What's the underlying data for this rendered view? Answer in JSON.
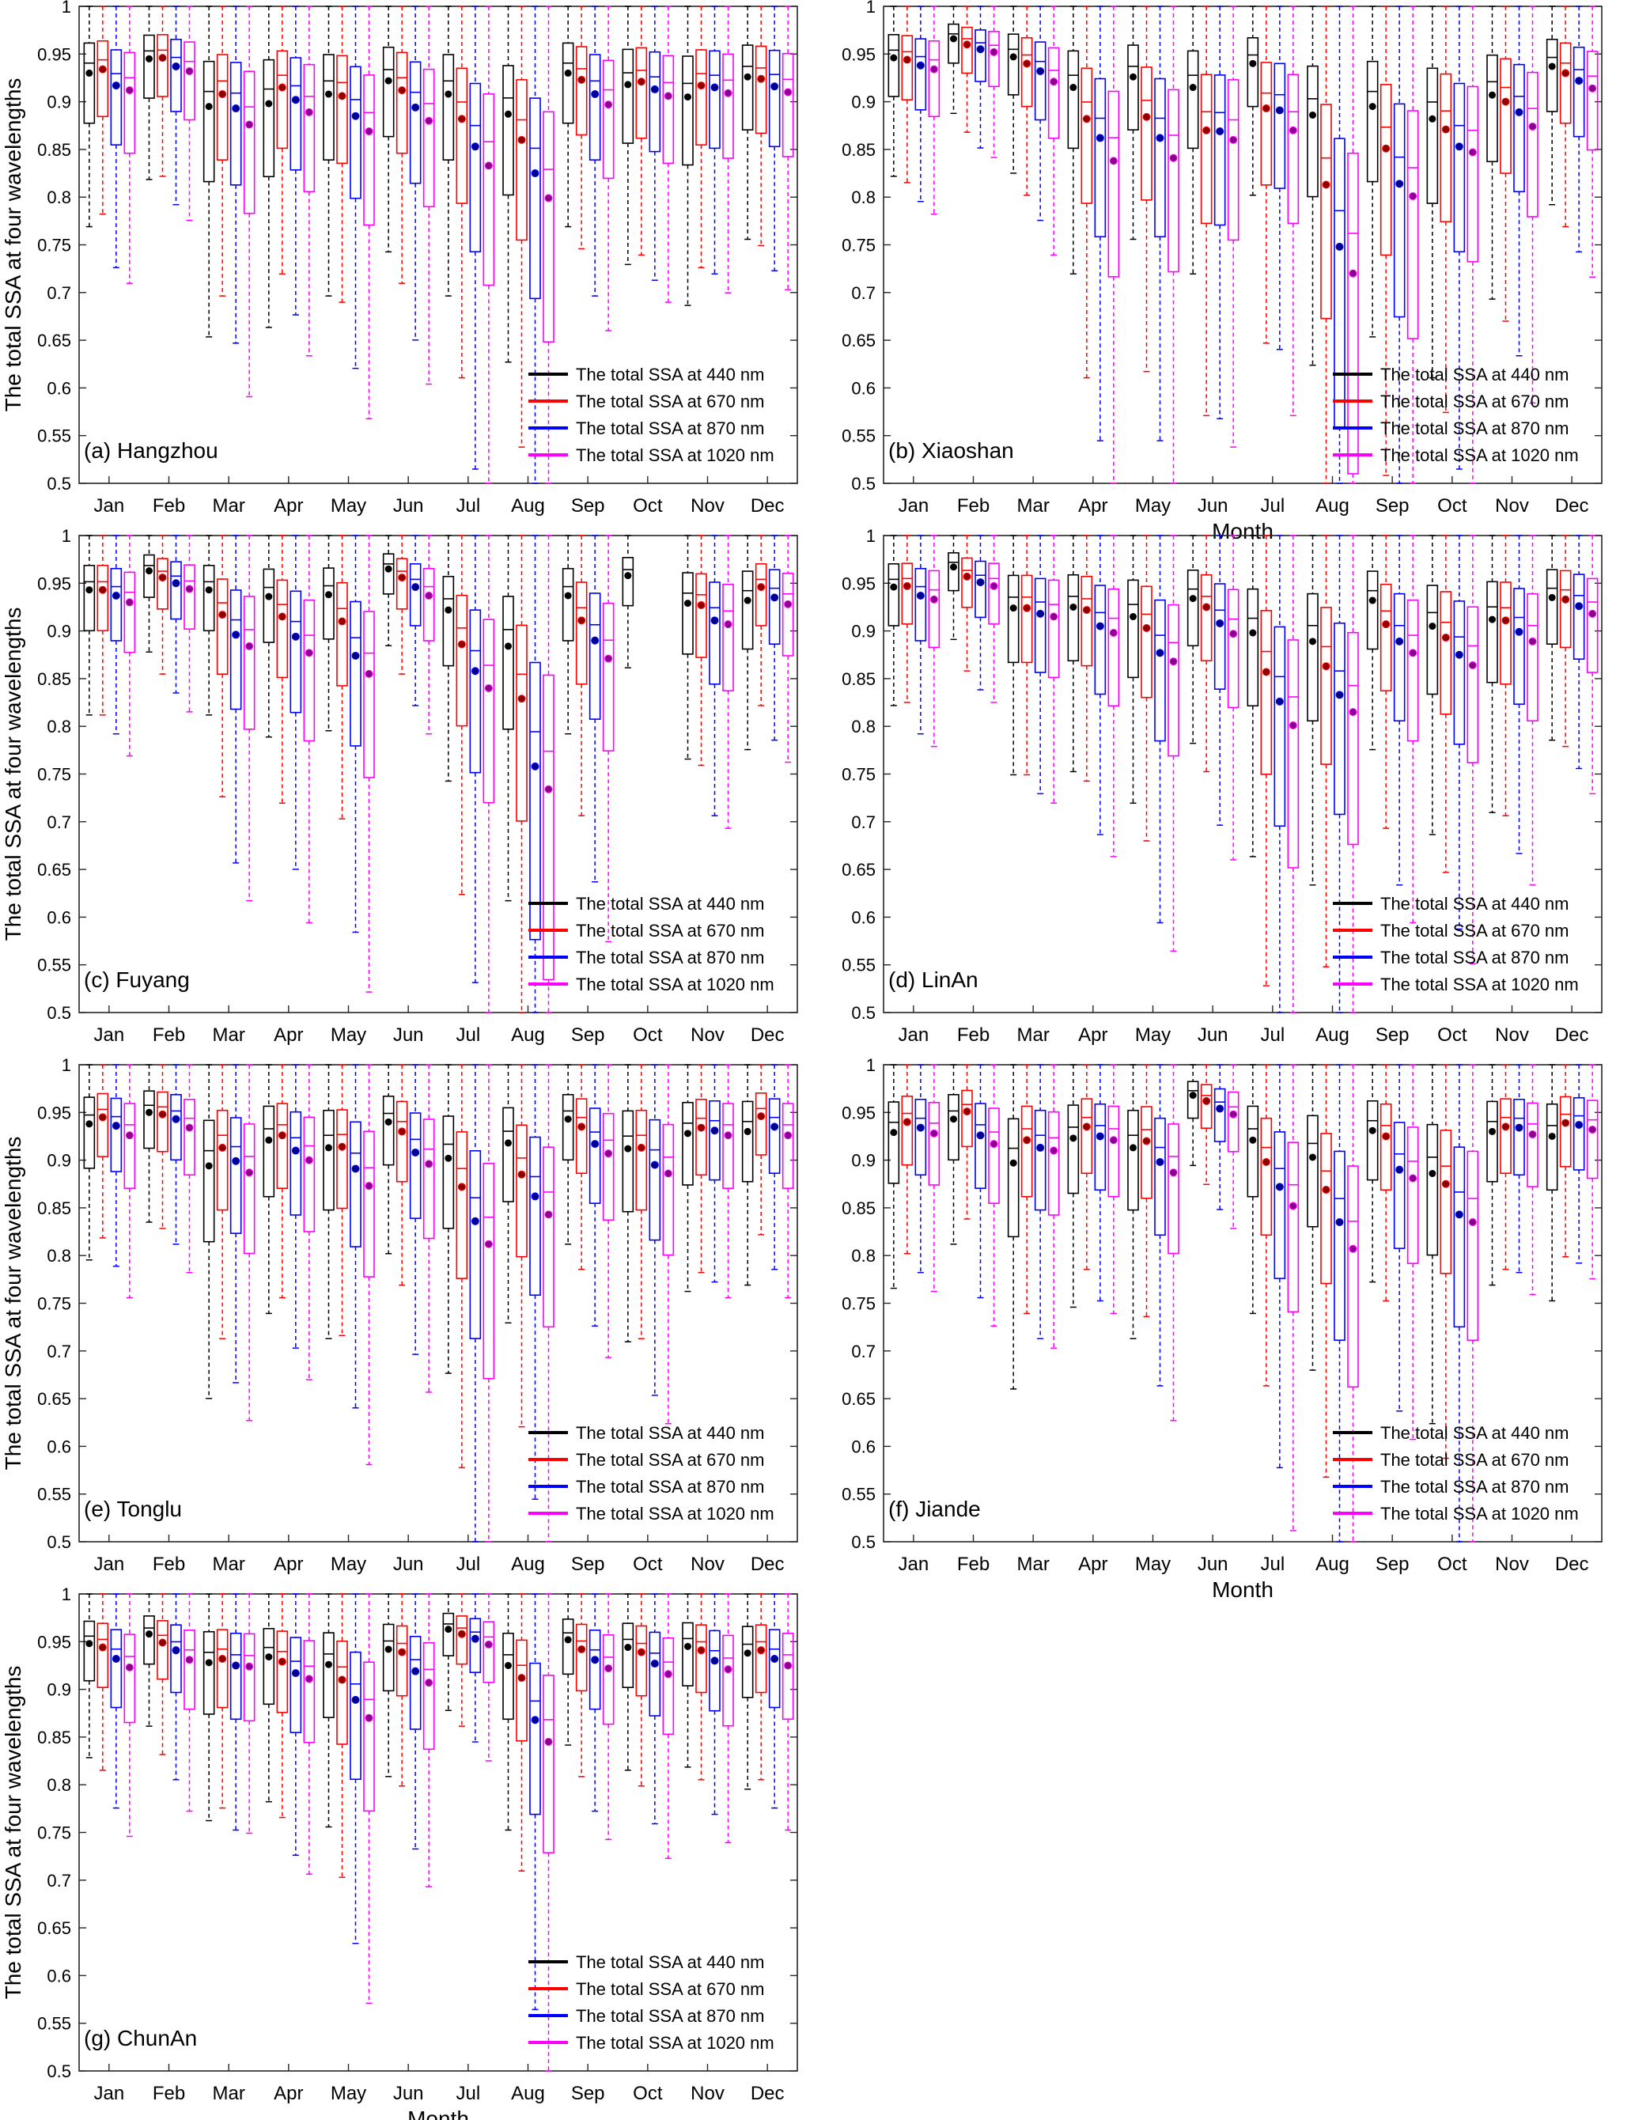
{
  "figure": {
    "ylabel": "The total SSA at four wavelengths",
    "xlabel": "Month"
  },
  "chart_data": [
    {
      "type": "box",
      "panel_label": "(a) Hangzhou",
      "ylim": [
        0.5,
        1.0
      ],
      "yticks": [
        "0.5",
        "0.55",
        "0.6",
        "0.65",
        "0.7",
        "0.75",
        "0.8",
        "0.85",
        "0.9",
        "0.95",
        "1"
      ],
      "categories": [
        "Jan",
        "Feb",
        "Mar",
        "Apr",
        "May",
        "Jun",
        "Jul",
        "Aug",
        "Sep",
        "Oct",
        "Nov",
        "Dec"
      ],
      "ylabel": "The total SSA at four wavelengths",
      "xlabel": "",
      "legend_position": "bottom-right",
      "series": [
        {
          "name": "The total SSA at 440  nm",
          "color": "#000000",
          "mean": [
            0.93,
            0.945,
            0.895,
            0.898,
            0.908,
            0.922,
            0.908,
            0.887,
            0.93,
            0.918,
            0.905,
            0.926
          ]
        },
        {
          "name": "The total SSA at 670  nm",
          "color": "#ff0000",
          "mean": [
            0.934,
            0.946,
            0.908,
            0.915,
            0.906,
            0.912,
            0.882,
            0.86,
            0.923,
            0.921,
            0.917,
            0.924
          ]
        },
        {
          "name": "The total SSA at 870  nm",
          "color": "#0000ff",
          "mean": [
            0.917,
            0.937,
            0.893,
            0.902,
            0.885,
            0.894,
            0.853,
            0.825,
            0.908,
            0.913,
            0.915,
            0.916
          ]
        },
        {
          "name": "The total SSA at 1020 nm",
          "color": "#ff00ff",
          "mean": [
            0.912,
            0.932,
            0.876,
            0.889,
            0.869,
            0.88,
            0.833,
            0.799,
            0.897,
            0.906,
            0.909,
            0.91
          ]
        }
      ]
    },
    {
      "type": "box",
      "panel_label": "(b) Xiaoshan",
      "ylim": [
        0.5,
        1.0
      ],
      "yticks": [
        "0.5",
        "0.55",
        "0.6",
        "0.65",
        "0.7",
        "0.75",
        "0.8",
        "0.85",
        "0.9",
        "0.95",
        "1"
      ],
      "categories": [
        "Jan",
        "Feb",
        "Mar",
        "Apr",
        "May",
        "Jun",
        "Jul",
        "Aug",
        "Sep",
        "Oct",
        "Nov",
        "Dec"
      ],
      "ylabel": "",
      "xlabel": "Month",
      "legend_position": "bottom-right",
      "series": [
        {
          "name": "The total SSA at 440  nm",
          "color": "#000000",
          "mean": [
            0.946,
            0.966,
            0.947,
            0.915,
            0.926,
            0.915,
            0.94,
            0.886,
            0.895,
            0.882,
            0.907,
            0.937
          ]
        },
        {
          "name": "The total SSA at 670  nm",
          "color": "#ff0000",
          "mean": [
            0.944,
            0.96,
            0.94,
            0.882,
            0.884,
            0.87,
            0.893,
            0.813,
            0.851,
            0.871,
            0.9,
            0.93
          ]
        },
        {
          "name": "The total SSA at 870  nm",
          "color": "#0000ff",
          "mean": [
            0.938,
            0.955,
            0.932,
            0.862,
            0.862,
            0.869,
            0.891,
            0.748,
            0.814,
            0.853,
            0.889,
            0.922
          ]
        },
        {
          "name": "The total SSA at 1020 nm",
          "color": "#ff00ff",
          "mean": [
            0.934,
            0.952,
            0.921,
            0.838,
            0.841,
            0.86,
            0.87,
            0.72,
            0.801,
            0.847,
            0.874,
            0.914
          ]
        }
      ]
    },
    {
      "type": "box",
      "panel_label": "(c) Fuyang",
      "ylim": [
        0.5,
        1.0
      ],
      "yticks": [
        "0.5",
        "0.55",
        "0.6",
        "0.65",
        "0.7",
        "0.75",
        "0.8",
        "0.85",
        "0.9",
        "0.95",
        "1"
      ],
      "categories": [
        "Jan",
        "Feb",
        "Mar",
        "Apr",
        "May",
        "Jun",
        "Jul",
        "Aug",
        "Sep",
        "Oct",
        "Nov",
        "Dec"
      ],
      "ylabel": "The total SSA at four wavelengths",
      "xlabel": "",
      "legend_position": "bottom-right",
      "series": [
        {
          "name": "The total SSA at 440  nm",
          "color": "#000000",
          "mean": [
            0.943,
            0.963,
            0.943,
            0.936,
            0.938,
            0.965,
            0.922,
            0.884,
            0.937,
            0.958,
            0.929,
            0.932
          ]
        },
        {
          "name": "The total SSA at 670  nm",
          "color": "#ff0000",
          "mean": [
            0.943,
            0.956,
            0.917,
            0.915,
            0.91,
            0.956,
            0.886,
            0.829,
            0.911,
            null,
            0.927,
            0.946
          ]
        },
        {
          "name": "The total SSA at 870  nm",
          "color": "#0000ff",
          "mean": [
            0.937,
            0.95,
            0.896,
            0.894,
            0.874,
            0.946,
            0.858,
            0.758,
            0.89,
            null,
            0.911,
            0.935
          ]
        },
        {
          "name": "The total SSA at 1020 nm",
          "color": "#ff00ff",
          "mean": [
            0.93,
            0.944,
            0.884,
            0.877,
            0.855,
            0.937,
            0.84,
            0.734,
            0.871,
            null,
            0.907,
            0.928
          ]
        }
      ]
    },
    {
      "type": "box",
      "panel_label": "(d) LinAn",
      "ylim": [
        0.5,
        1.0
      ],
      "yticks": [
        "0.5",
        "0.55",
        "0.6",
        "0.65",
        "0.7",
        "0.75",
        "0.8",
        "0.85",
        "0.9",
        "0.95",
        "1"
      ],
      "categories": [
        "Jan",
        "Feb",
        "Mar",
        "Apr",
        "May",
        "Jun",
        "Jul",
        "Aug",
        "Sep",
        "Oct",
        "Nov",
        "Dec"
      ],
      "ylabel": "",
      "xlabel": "",
      "legend_position": "bottom-right",
      "series": [
        {
          "name": "The total SSA at 440  nm",
          "color": "#000000",
          "mean": [
            0.946,
            0.967,
            0.924,
            0.925,
            0.915,
            0.934,
            0.898,
            0.889,
            0.932,
            0.905,
            0.912,
            0.935
          ]
        },
        {
          "name": "The total SSA at 670  nm",
          "color": "#ff0000",
          "mean": [
            0.947,
            0.957,
            0.924,
            0.922,
            0.903,
            0.925,
            0.857,
            0.863,
            0.907,
            0.893,
            0.911,
            0.933
          ]
        },
        {
          "name": "The total SSA at 870  nm",
          "color": "#0000ff",
          "mean": [
            0.937,
            0.951,
            0.918,
            0.905,
            0.877,
            0.908,
            0.826,
            0.833,
            0.889,
            0.875,
            0.899,
            0.926
          ]
        },
        {
          "name": "The total SSA at 1020 nm",
          "color": "#ff00ff",
          "mean": [
            0.933,
            0.947,
            0.915,
            0.898,
            0.868,
            0.897,
            0.801,
            0.815,
            0.877,
            0.864,
            0.889,
            0.918
          ]
        }
      ]
    },
    {
      "type": "box",
      "panel_label": "(e) Tonglu",
      "ylim": [
        0.5,
        1.0
      ],
      "yticks": [
        "0.5",
        "0.55",
        "0.6",
        "0.65",
        "0.7",
        "0.75",
        "0.8",
        "0.85",
        "0.9",
        "0.95",
        "1"
      ],
      "categories": [
        "Jan",
        "Feb",
        "Mar",
        "Apr",
        "May",
        "Jun",
        "Jul",
        "Aug",
        "Sep",
        "Oct",
        "Nov",
        "Dec"
      ],
      "ylabel": "The total SSA at four wavelengths",
      "xlabel": "",
      "legend_position": "bottom-right",
      "series": [
        {
          "name": "The total SSA at 440  nm",
          "color": "#000000",
          "mean": [
            0.938,
            0.95,
            0.894,
            0.921,
            0.913,
            0.94,
            0.902,
            0.918,
            0.943,
            0.912,
            0.928,
            0.93
          ]
        },
        {
          "name": "The total SSA at 670  nm",
          "color": "#ff0000",
          "mean": [
            0.945,
            0.948,
            0.913,
            0.926,
            0.914,
            0.93,
            0.872,
            0.885,
            0.935,
            0.913,
            0.934,
            0.946
          ]
        },
        {
          "name": "The total SSA at 870  nm",
          "color": "#0000ff",
          "mean": [
            0.936,
            0.943,
            0.899,
            0.91,
            0.891,
            0.908,
            0.836,
            0.862,
            0.917,
            0.895,
            0.931,
            0.935
          ]
        },
        {
          "name": "The total SSA at 1020 nm",
          "color": "#ff00ff",
          "mean": [
            0.926,
            0.934,
            0.887,
            0.9,
            0.873,
            0.896,
            0.812,
            0.843,
            0.907,
            0.886,
            0.926,
            0.926
          ]
        }
      ]
    },
    {
      "type": "box",
      "panel_label": "(f) Jiande",
      "ylim": [
        0.5,
        1.0
      ],
      "yticks": [
        "0.5",
        "0.55",
        "0.6",
        "0.65",
        "0.7",
        "0.75",
        "0.8",
        "0.85",
        "0.9",
        "0.95",
        "1"
      ],
      "categories": [
        "Jan",
        "Feb",
        "Mar",
        "Apr",
        "May",
        "Jun",
        "Jul",
        "Aug",
        "Sep",
        "Oct",
        "Nov",
        "Dec"
      ],
      "ylabel": "",
      "xlabel": "Month",
      "legend_position": "bottom-right",
      "series": [
        {
          "name": "The total SSA at 440  nm",
          "color": "#000000",
          "mean": [
            0.929,
            0.943,
            0.897,
            0.923,
            0.913,
            0.968,
            0.921,
            0.903,
            0.931,
            0.886,
            0.93,
            0.925
          ]
        },
        {
          "name": "The total SSA at 670  nm",
          "color": "#ff0000",
          "mean": [
            0.94,
            0.951,
            0.921,
            0.935,
            0.92,
            0.962,
            0.898,
            0.869,
            0.925,
            0.875,
            0.935,
            0.939
          ]
        },
        {
          "name": "The total SSA at 870  nm",
          "color": "#0000ff",
          "mean": [
            0.934,
            0.926,
            0.913,
            0.925,
            0.898,
            0.954,
            0.872,
            0.835,
            0.89,
            0.843,
            0.934,
            0.937
          ]
        },
        {
          "name": "The total SSA at 1020 nm",
          "color": "#ff00ff",
          "mean": [
            0.928,
            0.917,
            0.91,
            0.921,
            0.887,
            0.948,
            0.852,
            0.807,
            0.881,
            0.835,
            0.927,
            0.932
          ]
        }
      ]
    },
    {
      "type": "box",
      "panel_label": "(g) ChunAn",
      "ylim": [
        0.5,
        1.0
      ],
      "yticks": [
        "0.5",
        "0.55",
        "0.6",
        "0.65",
        "0.7",
        "0.75",
        "0.8",
        "0.85",
        "0.9",
        "0.95",
        "1"
      ],
      "categories": [
        "Jan",
        "Feb",
        "Mar",
        "Apr",
        "May",
        "Jun",
        "Jul",
        "Aug",
        "Sep",
        "Oct",
        "Nov",
        "Dec"
      ],
      "ylabel": "The total SSA at four wavelengths",
      "xlabel": "Month",
      "legend_position": "bottom-right",
      "series": [
        {
          "name": "The total SSA at 440  nm",
          "color": "#000000",
          "mean": [
            0.948,
            0.958,
            0.928,
            0.934,
            0.926,
            0.942,
            0.963,
            0.925,
            0.952,
            0.944,
            0.945,
            0.938
          ]
        },
        {
          "name": "The total SSA at 670  nm",
          "color": "#ff0000",
          "mean": [
            0.944,
            0.949,
            0.932,
            0.929,
            0.91,
            0.939,
            0.958,
            0.912,
            0.942,
            0.939,
            0.941,
            0.941
          ]
        },
        {
          "name": "The total SSA at 870  nm",
          "color": "#0000ff",
          "mean": [
            0.932,
            0.941,
            0.925,
            0.917,
            0.889,
            0.919,
            0.953,
            0.868,
            0.931,
            0.927,
            0.93,
            0.932
          ]
        },
        {
          "name": "The total SSA at 1020 nm",
          "color": "#ff00ff",
          "mean": [
            0.923,
            0.931,
            0.924,
            0.911,
            0.87,
            0.907,
            0.947,
            0.845,
            0.922,
            0.916,
            0.921,
            0.925
          ]
        }
      ]
    }
  ]
}
